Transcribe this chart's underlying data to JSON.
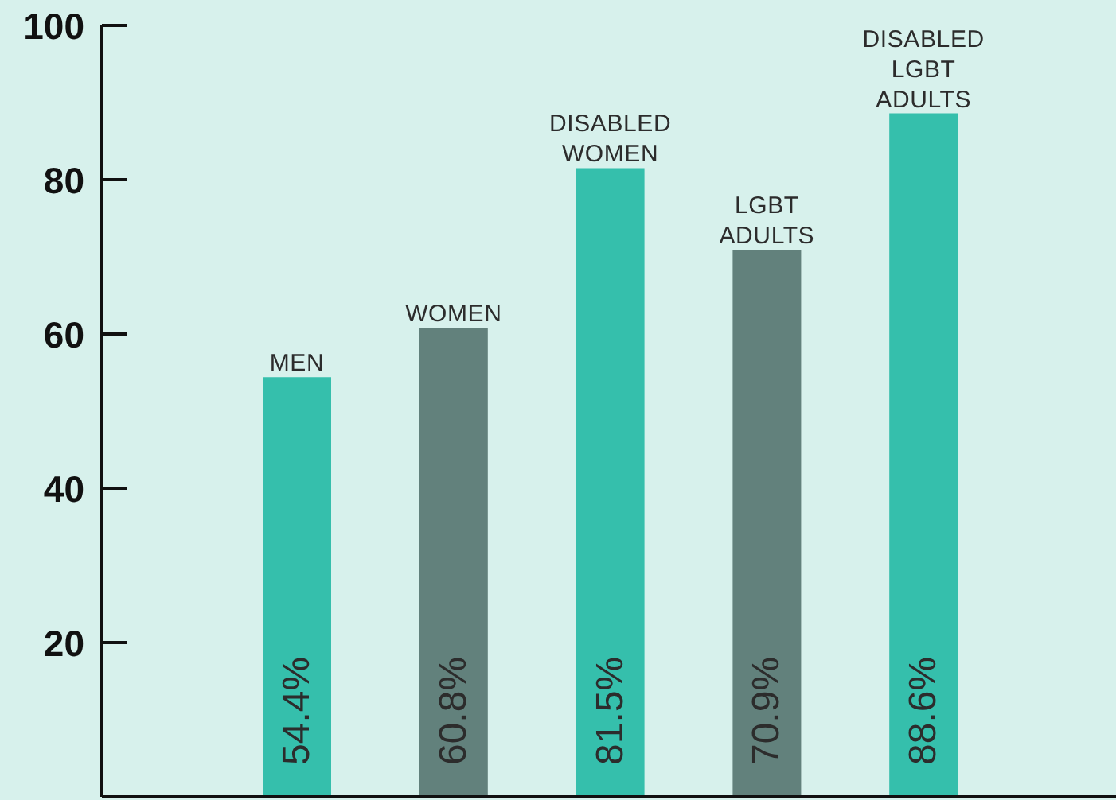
{
  "chart_data": {
    "type": "bar",
    "categories": [
      "MEN",
      "WOMEN",
      "DISABLED WOMEN",
      "LGBT ADULTS",
      "DISABLED LGBT ADULTS"
    ],
    "values": [
      54.4,
      60.8,
      81.5,
      70.9,
      88.6
    ],
    "colors": [
      "#35bfac",
      "#62817c",
      "#35bfac",
      "#62817c",
      "#35bfac"
    ],
    "value_labels": [
      "54.4%",
      "60.8%",
      "81.5%",
      "70.9%",
      "88.6%"
    ],
    "ylim": [
      0,
      100
    ],
    "yticks": [
      20,
      40,
      60,
      80,
      100
    ],
    "grid": false,
    "legend": false
  }
}
